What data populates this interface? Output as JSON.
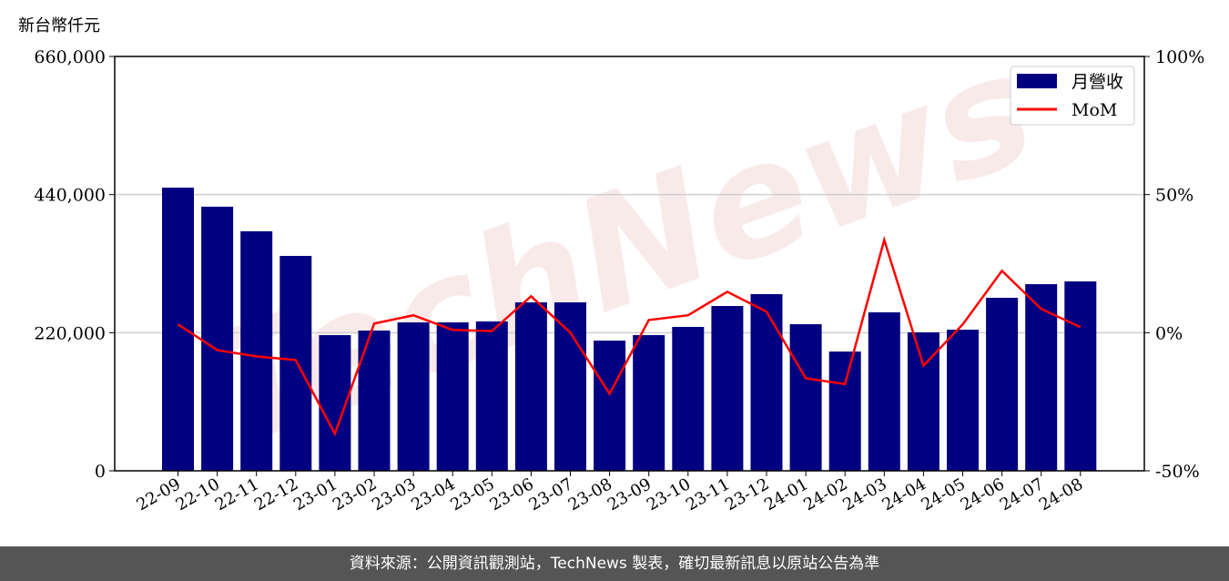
{
  "chart_data": {
    "type": "bar+line",
    "ylabel": "新台幣仟元",
    "categories": [
      "22-09",
      "22-10",
      "22-11",
      "22-12",
      "23-01",
      "23-02",
      "23-03",
      "23-04",
      "23-05",
      "23-06",
      "23-07",
      "23-08",
      "23-09",
      "23-10",
      "23-11",
      "23-12",
      "24-01",
      "24-02",
      "24-03",
      "24-04",
      "24-05",
      "24-06",
      "24-07",
      "24-08"
    ],
    "series": [
      {
        "name": "月營收",
        "type": "bar",
        "axis": "left",
        "color": "#000080",
        "values": [
          451000,
          420700,
          381500,
          342300,
          216100,
          223400,
          236400,
          236400,
          237900,
          268300,
          268300,
          207400,
          216100,
          229200,
          262500,
          281400,
          233500,
          190000,
          252400,
          220500,
          224800,
          275600,
          297300,
          301700
        ]
      },
      {
        "name": "MoM",
        "type": "line",
        "axis": "right",
        "color": "#ff0000",
        "values": [
          3.0,
          -6.3,
          -8.6,
          -9.9,
          -36.6,
          3.3,
          6.3,
          1.0,
          0.6,
          13.2,
          0.0,
          -22.1,
          4.6,
          6.3,
          14.8,
          7.6,
          -16.5,
          -18.6,
          33.6,
          -11.9,
          3.0,
          22.4,
          8.6,
          2.0
        ]
      }
    ],
    "ylim_left": [
      0,
      660000
    ],
    "yticks_left": [
      "0",
      "220,000",
      "440,000",
      "660,000"
    ],
    "ylim_right": [
      -50,
      100
    ],
    "yticks_right": [
      "-50%",
      "0%",
      "50%",
      "100%"
    ],
    "grid": "horizontal",
    "legend": "top-right"
  },
  "watermark": "TechNews",
  "footer": "資料來源：公開資訊觀測站，TechNews 製表，確切最新訊息以原站公告為準"
}
